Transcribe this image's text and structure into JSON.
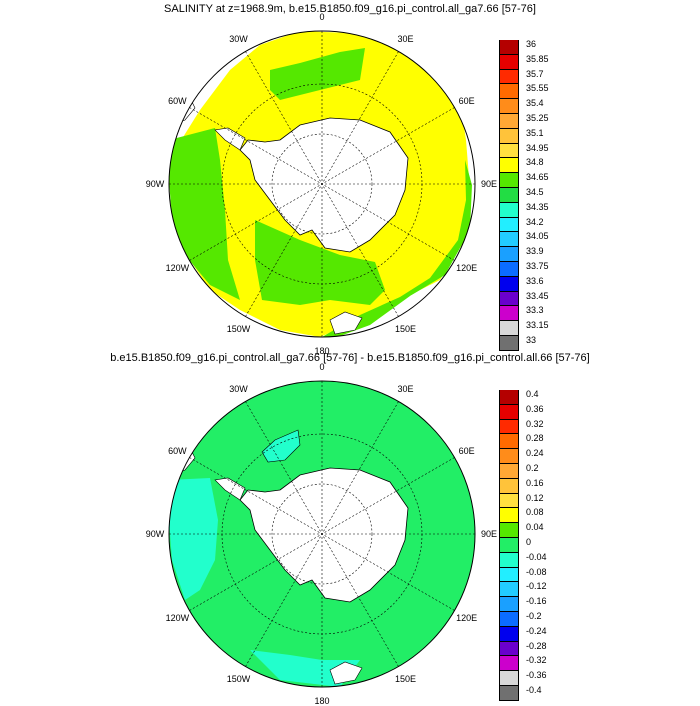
{
  "panels": [
    {
      "title": "SALINITY at z=1968.9m, b.e15.B1850.f09_g16.pi_control.all_ga7.66 [57-76]",
      "lon_labels": [
        "0",
        "30E",
        "60E",
        "90E",
        "120E",
        "150E",
        "180",
        "150W",
        "120W",
        "90W",
        "60W",
        "30W"
      ],
      "colorbar": {
        "labels": [
          "36",
          "35.85",
          "35.7",
          "35.55",
          "35.4",
          "35.25",
          "35.1",
          "34.95",
          "34.8",
          "34.65",
          "34.5",
          "34.35",
          "34.2",
          "34.05",
          "33.9",
          "33.75",
          "33.6",
          "33.45",
          "33.3",
          "33.15",
          "33"
        ],
        "colors": [
          "#b40000",
          "#e60000",
          "#ff2a00",
          "#ff6a00",
          "#ff8c1a",
          "#ffa835",
          "#ffc33a",
          "#ffe040",
          "#ffff00",
          "#55e800",
          "#22dd44",
          "#22ffcc",
          "#22eeff",
          "#22ccff",
          "#1aa0ff",
          "#0b6cff",
          "#0000ee",
          "#6a00cc",
          "#cc00cc",
          "#d8d8d8",
          "#707070"
        ]
      },
      "fields": {
        "main": "#ffff00",
        "secondary": "#55e800"
      }
    },
    {
      "title": "b.e15.B1850.f09_g16.pi_control.all_ga7.66 [57-76] - b.e15.B1850.f09_g16.pi_control.all.66 [57-76]",
      "lon_labels": [
        "0",
        "30E",
        "60E",
        "90E",
        "120E",
        "150E",
        "180",
        "150W",
        "120W",
        "90W",
        "60W",
        "30W"
      ],
      "colorbar": {
        "labels": [
          "0.4",
          "0.36",
          "0.32",
          "0.28",
          "0.24",
          "0.2",
          "0.16",
          "0.12",
          "0.08",
          "0.04",
          "0",
          "-0.04",
          "-0.08",
          "-0.12",
          "-0.16",
          "-0.2",
          "-0.24",
          "-0.28",
          "-0.32",
          "-0.36",
          "-0.4"
        ],
        "colors": [
          "#b40000",
          "#e60000",
          "#ff2a00",
          "#ff6a00",
          "#ff8c1a",
          "#ffa835",
          "#ffc33a",
          "#ffe040",
          "#ffff00",
          "#55e800",
          "#22ee66",
          "#22ffcc",
          "#22eeff",
          "#22ccff",
          "#1aa0ff",
          "#0b6cff",
          "#0000ee",
          "#6a00cc",
          "#cc00cc",
          "#d8d8d8",
          "#707070"
        ]
      },
      "fields": {
        "main": "#22ee66",
        "secondary": "#22ffcc"
      }
    }
  ]
}
